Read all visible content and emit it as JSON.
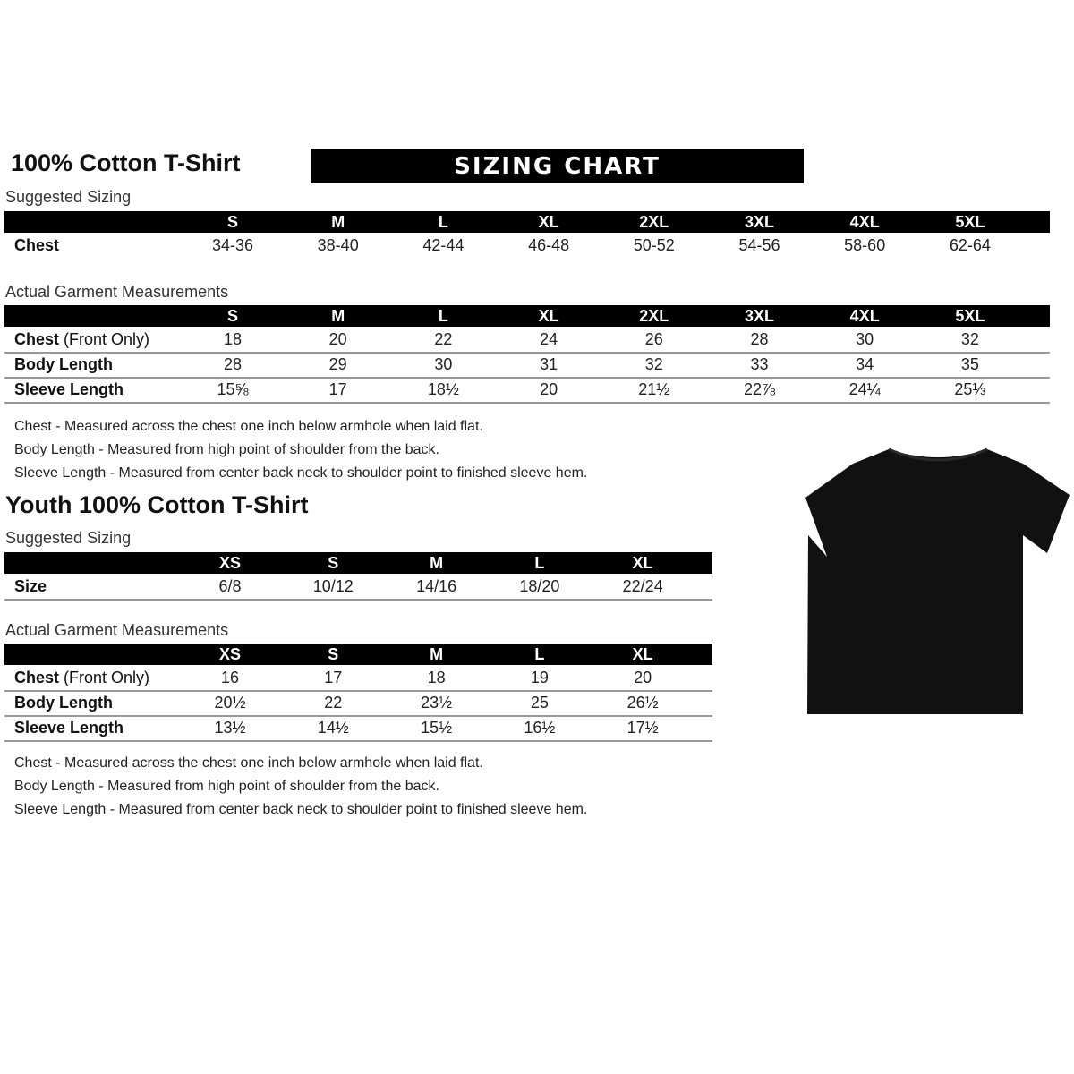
{
  "adult": {
    "title": "100% Cotton T-Shirt",
    "banner": "SIZING CHART",
    "suggested_label": "Suggested Sizing",
    "sizes": [
      "S",
      "M",
      "L",
      "XL",
      "2XL",
      "3XL",
      "4XL",
      "5XL"
    ],
    "suggested_rows": [
      {
        "label": "Chest",
        "values": [
          "34-36",
          "38-40",
          "42-44",
          "46-48",
          "50-52",
          "54-56",
          "58-60",
          "62-64"
        ]
      }
    ],
    "actual_label": "Actual Garment Measurements",
    "actual_rows": [
      {
        "label": "Chest",
        "label_note": "(Front Only)",
        "values": [
          "18",
          "20",
          "22",
          "24",
          "26",
          "28",
          "30",
          "32"
        ]
      },
      {
        "label": "Body Length",
        "values": [
          "28",
          "29",
          "30",
          "31",
          "32",
          "33",
          "34",
          "35"
        ]
      },
      {
        "label": "Sleeve Length",
        "values": [
          "15⅝",
          "17",
          "18½",
          "20",
          "21½",
          "22⅞",
          "24¼",
          "25⅓"
        ]
      }
    ],
    "notes": [
      "Chest - Measured across the chest one inch below armhole when laid flat.",
      "Body Length - Measured from high point of shoulder from the back.",
      "Sleeve Length - Measured from center back neck to shoulder point to finished sleeve hem."
    ]
  },
  "youth": {
    "title": "Youth 100% Cotton T-Shirt",
    "suggested_label": "Suggested Sizing",
    "sizes": [
      "XS",
      "S",
      "M",
      "L",
      "XL"
    ],
    "suggested_rows": [
      {
        "label": "Size",
        "values": [
          "6/8",
          "10/12",
          "14/16",
          "18/20",
          "22/24"
        ]
      }
    ],
    "actual_label": "Actual Garment Measurements",
    "actual_rows": [
      {
        "label": "Chest",
        "label_note": "(Front Only)",
        "values": [
          "16",
          "17",
          "18",
          "19",
          "20"
        ]
      },
      {
        "label": "Body Length",
        "values": [
          "20½",
          "22",
          "23½",
          "25",
          "26½"
        ]
      },
      {
        "label": "Sleeve Length",
        "values": [
          "13½",
          "14½",
          "15½",
          "16½",
          "17½"
        ]
      }
    ],
    "notes": [
      "Chest - Measured across the chest one inch below armhole when laid flat.",
      "Body Length - Measured from high point of shoulder from the back.",
      "Sleeve Length - Measured from center back neck to shoulder point to finished sleeve hem."
    ]
  },
  "image": {
    "icon": "black-tshirt-icon",
    "color": "#111111"
  }
}
